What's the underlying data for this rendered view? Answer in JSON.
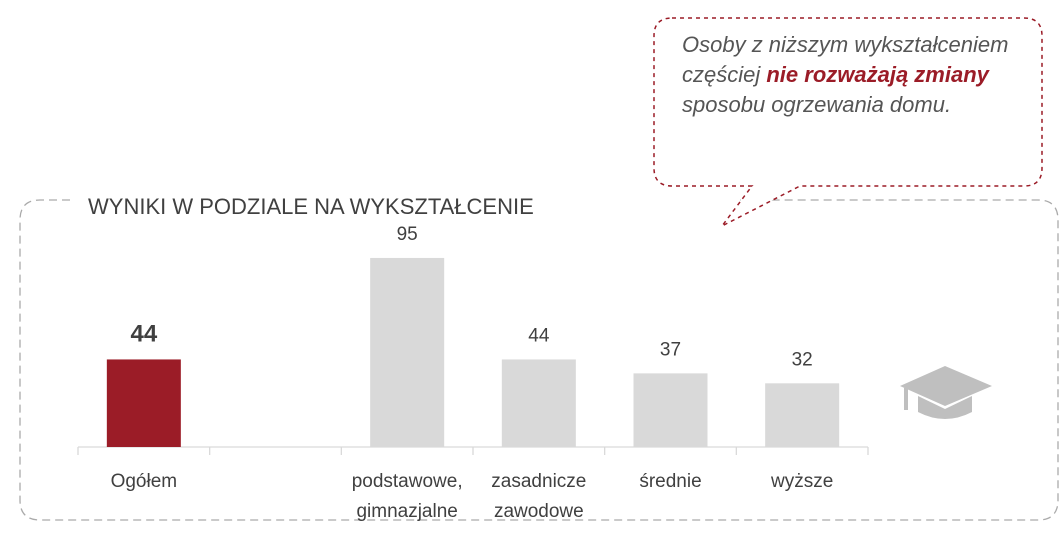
{
  "chart_data": {
    "type": "bar",
    "title": "WYNIKI W PODZIALE NA WYKSZTAŁCENIE",
    "annotation": [
      "Osoby z niższym wykształceniem częściej ",
      "nie rozważają zmiany",
      " sposobu ogrzewania domu."
    ],
    "categories": [
      "Ogółem",
      null,
      "podstawowe, gimnazjalne",
      "zasadnicze zawodowe",
      "średnie",
      "wyższe"
    ],
    "values": [
      44,
      null,
      95,
      44,
      37,
      32
    ],
    "colors": [
      "#9b1c27",
      null,
      "#d9d9d9",
      "#d9d9d9",
      "#d9d9d9",
      "#d9d9d9"
    ]
  }
}
